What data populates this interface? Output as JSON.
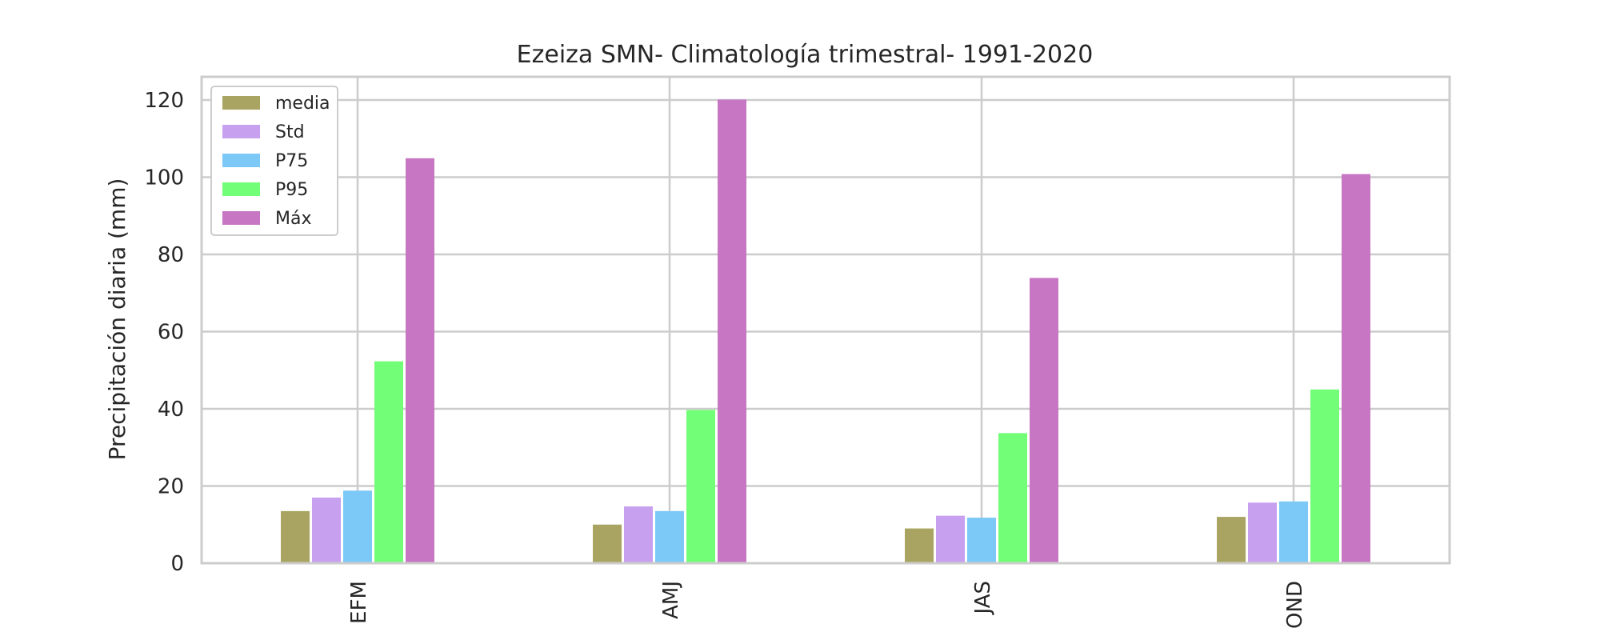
{
  "chart_data": {
    "type": "bar",
    "title": "Ezeiza SMN- Climatología trimestral- 1991-2020",
    "xlabel": "",
    "ylabel": "Precipitación diaria (mm)",
    "ylim": [
      0,
      126
    ],
    "yticks": [
      0,
      20,
      40,
      60,
      80,
      100,
      120
    ],
    "categories": [
      "EFM",
      "AMJ",
      "JAS",
      "OND"
    ],
    "grid": true,
    "legend_position": "top-left",
    "series": [
      {
        "name": "media",
        "color": "#a9a461",
        "values": [
          13.5,
          10,
          9,
          12
        ]
      },
      {
        "name": "Std",
        "color": "#c7a0ef",
        "values": [
          17,
          14.7,
          12.3,
          15.7
        ]
      },
      {
        "name": "P75",
        "color": "#7cc8f7",
        "values": [
          18.8,
          13.5,
          11.8,
          16
        ]
      },
      {
        "name": "P95",
        "color": "#73fe78",
        "values": [
          52.3,
          39.7,
          33.7,
          45
        ]
      },
      {
        "name": "Máx",
        "color": "#c776c3",
        "values": [
          104.9,
          120.1,
          73.9,
          100.8
        ]
      }
    ]
  }
}
